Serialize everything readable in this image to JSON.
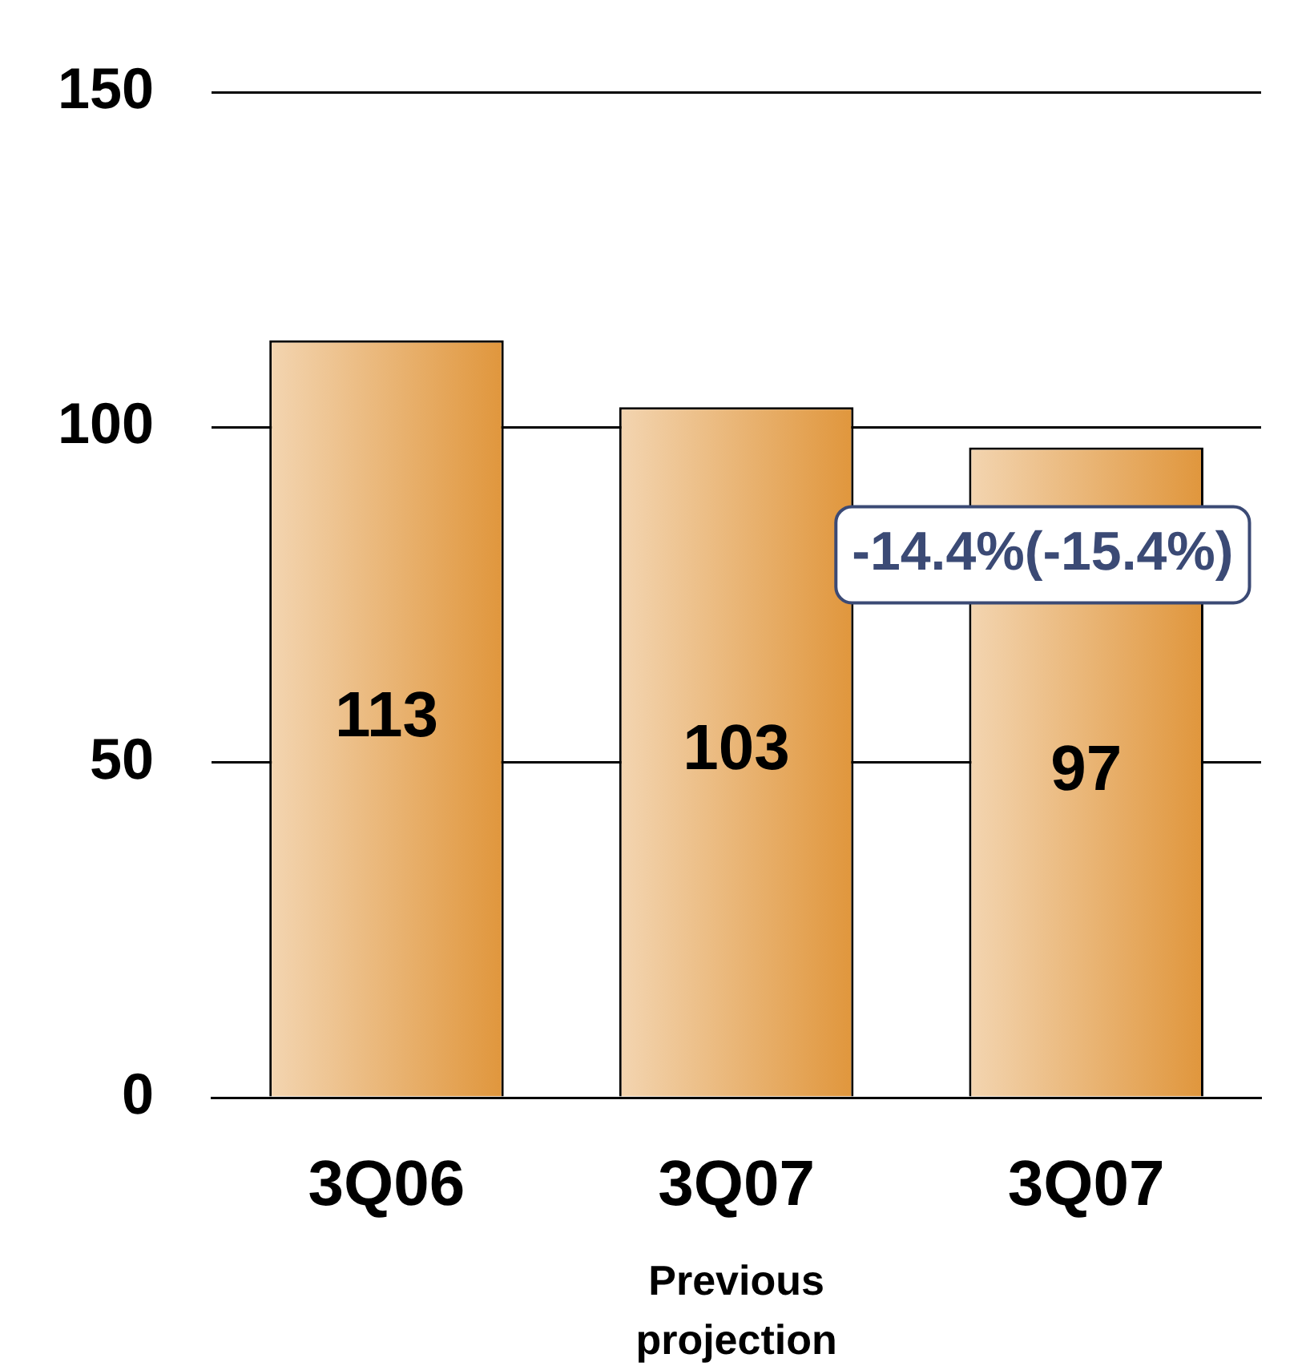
{
  "chart_data": {
    "type": "bar",
    "categories": [
      "3Q06",
      "3Q07\nPrevious projection",
      "3Q07"
    ],
    "values": [
      113,
      103,
      97
    ],
    "color": "#e0963c",
    "ylim": [
      0,
      150
    ],
    "yticks": [
      0,
      50,
      100,
      150
    ],
    "grid": "y",
    "data_labels": true,
    "annotations": [
      "-14.4%(-15.4%)"
    ]
  }
}
